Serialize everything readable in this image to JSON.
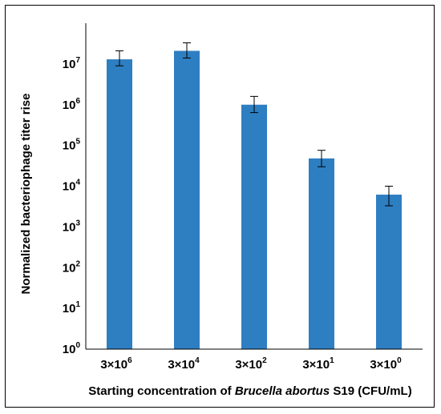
{
  "chart_data": {
    "type": "bar",
    "title": "",
    "xlabel_parts": [
      "Starting concentration of ",
      "Brucella abortus",
      " S19 (CFU/mL)"
    ],
    "ylabel": "Normalized bacteriophage titer rise",
    "y_scale": "log10",
    "ylim": [
      1,
      100000000
    ],
    "y_tick_exponents": [
      0,
      1,
      2,
      3,
      4,
      5,
      6,
      7
    ],
    "categories": [
      {
        "base": "3×10",
        "exp": "6"
      },
      {
        "base": "3×10",
        "exp": "4"
      },
      {
        "base": "3×10",
        "exp": "2"
      },
      {
        "base": "3×10",
        "exp": "1"
      },
      {
        "base": "3×10",
        "exp": "0"
      }
    ],
    "values": [
      13000000,
      21000000,
      1000000,
      48000,
      6200
    ],
    "error_low": [
      9000000,
      14000000,
      640000,
      30000,
      3300
    ],
    "error_high": [
      21000000,
      33000000,
      1600000,
      76000,
      10000
    ],
    "bar_color": "#2e7ec2",
    "grid": false,
    "legend": "none"
  }
}
